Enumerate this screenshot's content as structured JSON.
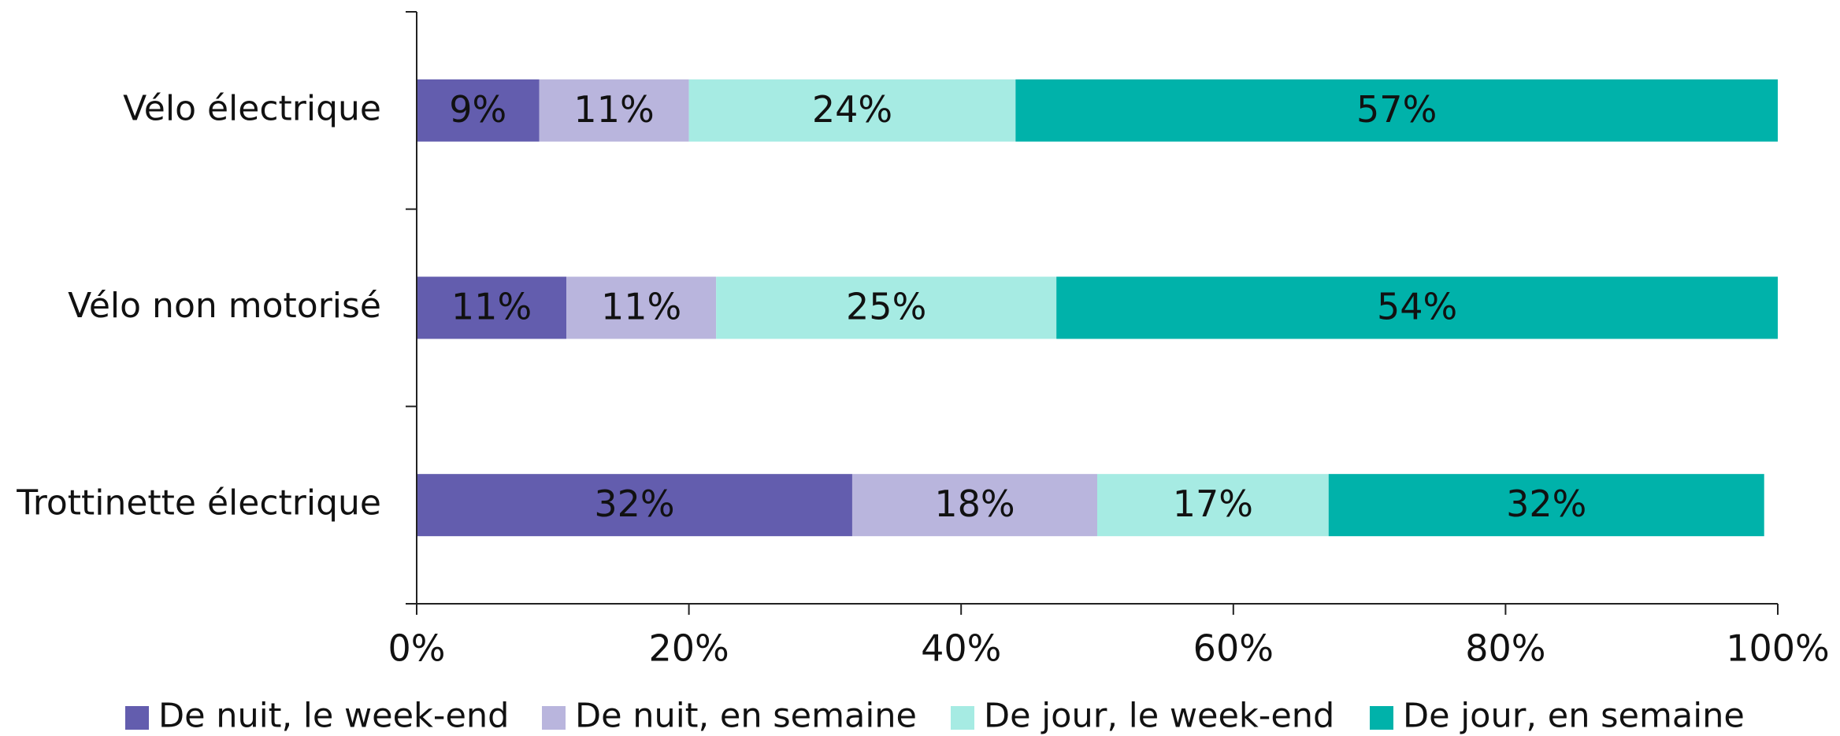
{
  "chart_data": {
    "type": "stacked_barh",
    "categories": [
      "Vélo électrique",
      "Vélo non motorisé",
      "Trottinette électrique"
    ],
    "series": [
      {
        "name": "De nuit, le week-end",
        "color": "#635dae",
        "values": [
          9,
          11,
          32
        ],
        "value_labels": [
          "9%",
          "11%",
          "32%"
        ]
      },
      {
        "name": "De nuit, en semaine",
        "color": "#b9b5dd",
        "values": [
          11,
          11,
          18
        ],
        "value_labels": [
          "11%",
          "11%",
          "18%"
        ]
      },
      {
        "name": "De jour, le week-end",
        "color": "#a6ebe3",
        "values": [
          24,
          25,
          17
        ],
        "value_labels": [
          "24%",
          "25%",
          "17%"
        ]
      },
      {
        "name": "De jour, en semaine",
        "color": "#00b2aa",
        "values": [
          57,
          54,
          32
        ],
        "value_labels": [
          "57%",
          "54%",
          "32%"
        ]
      }
    ],
    "xlim": [
      0,
      100
    ],
    "xticks": [
      {
        "value": 0,
        "label": "0%"
      },
      {
        "value": 20,
        "label": "20%"
      },
      {
        "value": 40,
        "label": "40%"
      },
      {
        "value": 60,
        "label": "60%"
      },
      {
        "value": 80,
        "label": "80%"
      },
      {
        "value": 100,
        "label": "100%"
      }
    ],
    "legend": "bottom"
  }
}
